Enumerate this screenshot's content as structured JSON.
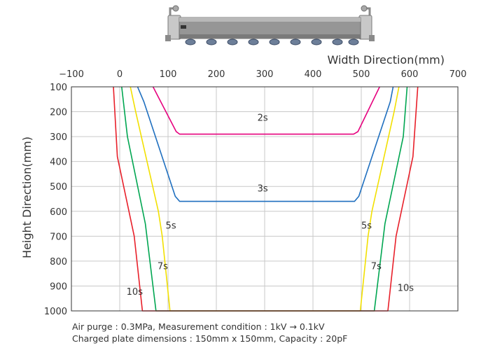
{
  "chart_data": {
    "type": "line",
    "title": "",
    "xlabel": "Width Direction(mm)",
    "ylabel": "Height Direction(mm)",
    "xlim": [
      -100,
      700
    ],
    "ylim": [
      100,
      1000
    ],
    "y_inverted": true,
    "x_axis_position": "top",
    "x_ticks": [
      "-100",
      "0",
      "100",
      "200",
      "300",
      "400",
      "500",
      "600",
      "700"
    ],
    "y_ticks": [
      "100",
      "200",
      "300",
      "400",
      "500",
      "600",
      "700",
      "800",
      "900",
      "1000"
    ],
    "grid": true,
    "colors": {
      "2s": "#e6007e",
      "3s": "#1f6fbf",
      "5s": "#f2e000",
      "7s": "#00a651",
      "10s": "#e8202a"
    },
    "series": [
      {
        "name": "2s",
        "left": [
          [
            69,
            100
          ],
          [
            117,
            280
          ],
          [
            124,
            290
          ]
        ],
        "right": [
          [
            484,
            290
          ],
          [
            493,
            280
          ],
          [
            538,
            100
          ]
        ]
      },
      {
        "name": "3s",
        "left": [
          [
            37,
            100
          ],
          [
            50,
            160
          ],
          [
            115,
            540
          ],
          [
            124,
            560
          ]
        ],
        "right": [
          [
            486,
            560
          ],
          [
            495,
            540
          ],
          [
            560,
            160
          ],
          [
            566,
            100
          ]
        ]
      },
      {
        "name": "5s",
        "left": [
          [
            22,
            100
          ],
          [
            33,
            200
          ],
          [
            80,
            600
          ],
          [
            88,
            700
          ],
          [
            104,
            1000
          ]
        ],
        "right": [
          [
            498,
            1000
          ],
          [
            514,
            700
          ],
          [
            522,
            600
          ],
          [
            568,
            200
          ],
          [
            578,
            100
          ]
        ]
      },
      {
        "name": "7s",
        "left": [
          [
            4,
            100
          ],
          [
            16,
            300
          ],
          [
            53,
            650
          ],
          [
            75,
            1000
          ]
        ],
        "right": [
          [
            527,
            1000
          ],
          [
            549,
            650
          ],
          [
            587,
            300
          ],
          [
            595,
            100
          ]
        ]
      },
      {
        "name": "10s",
        "left": [
          [
            -13,
            100
          ],
          [
            -5,
            380
          ],
          [
            30,
            700
          ],
          [
            47,
            1000
          ]
        ],
        "right": [
          [
            555,
            1000
          ],
          [
            572,
            700
          ],
          [
            607,
            380
          ],
          [
            617,
            100
          ]
        ]
      }
    ],
    "annotations": [
      {
        "text": "2s",
        "x": 285,
        "y": 236
      },
      {
        "text": "3s",
        "x": 285,
        "y": 520
      },
      {
        "text": "5s",
        "x": 95,
        "y": 670
      },
      {
        "text": "5s",
        "x": 500,
        "y": 670
      },
      {
        "text": "7s",
        "x": 78,
        "y": 832
      },
      {
        "text": "7s",
        "x": 520,
        "y": 832
      },
      {
        "text": "10s",
        "x": 14,
        "y": 935
      },
      {
        "text": "10s",
        "x": 575,
        "y": 920
      }
    ]
  },
  "caption": {
    "line1": "Air purge : 0.3MPa, Measurement condition : 1kV → 0.1kV",
    "line2": "Charged plate dimensions : 150mm x 150mm, Capacity : 20pF"
  }
}
